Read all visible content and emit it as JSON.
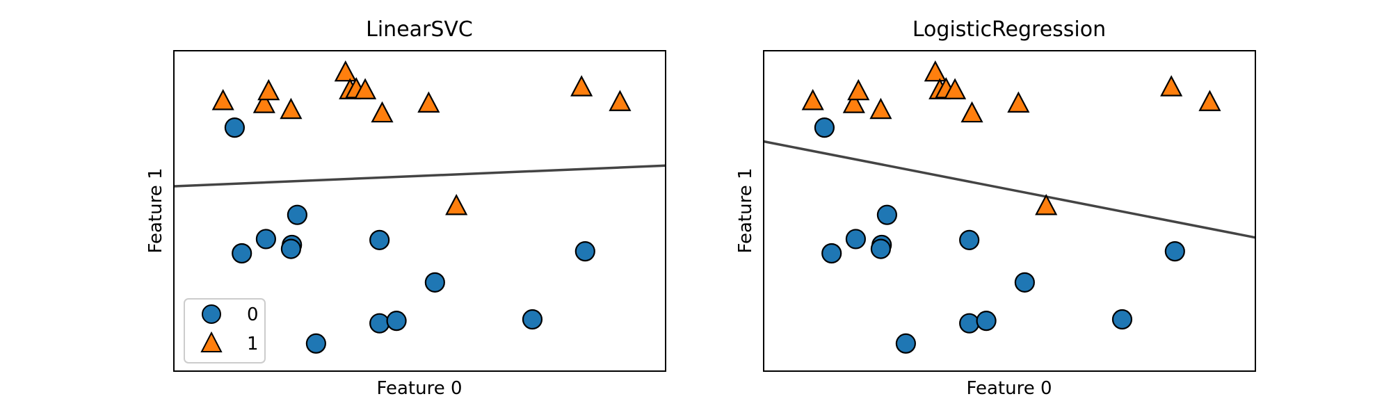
{
  "chart_data": [
    {
      "type": "scatter",
      "title": "LinearSVC",
      "xlabel": "Feature 0",
      "ylabel": "Feature 1",
      "xlim": [
        7.1,
        12.6
      ],
      "ylim": [
        -0.6,
        5.9
      ],
      "grid": false,
      "legend": {
        "placement": "lower-left",
        "entries": [
          "0",
          "1"
        ]
      },
      "series": [
        {
          "name": "0",
          "marker": "circle",
          "color": "#1f77b4",
          "points": [
            [
              7.78,
              4.34
            ],
            [
              8.48,
              2.57
            ],
            [
              7.86,
              1.79
            ],
            [
              8.13,
              2.08
            ],
            [
              8.42,
              1.96
            ],
            [
              8.41,
              1.88
            ],
            [
              9.4,
              2.06
            ],
            [
              10.02,
              1.2
            ],
            [
              8.69,
              -0.04
            ],
            [
              9.4,
              0.37
            ],
            [
              9.59,
              0.42
            ],
            [
              11.11,
              0.45
            ],
            [
              11.7,
              1.83
            ]
          ]
        },
        {
          "name": "1",
          "marker": "triangle",
          "color": "#ff7f0e",
          "points": [
            [
              7.65,
              4.88
            ],
            [
              8.11,
              4.82
            ],
            [
              8.16,
              5.08
            ],
            [
              8.41,
              4.7
            ],
            [
              9.02,
              5.46
            ],
            [
              9.07,
              5.1
            ],
            [
              9.14,
              5.12
            ],
            [
              9.24,
              5.1
            ],
            [
              9.43,
              4.63
            ],
            [
              9.95,
              4.83
            ],
            [
              10.26,
              2.75
            ],
            [
              11.66,
              5.16
            ],
            [
              12.09,
              4.86
            ]
          ]
        }
      ],
      "decision_line": [
        [
          7.1,
          3.15
        ],
        [
          12.6,
          3.57
        ]
      ]
    },
    {
      "type": "scatter",
      "title": "LogisticRegression",
      "xlabel": "Feature 0",
      "ylabel": "Feature 1",
      "xlim": [
        7.1,
        12.6
      ],
      "ylim": [
        -0.6,
        5.9
      ],
      "grid": false,
      "series": [
        {
          "name": "0",
          "marker": "circle",
          "color": "#1f77b4",
          "points": [
            [
              7.78,
              4.34
            ],
            [
              8.48,
              2.57
            ],
            [
              7.86,
              1.79
            ],
            [
              8.13,
              2.08
            ],
            [
              8.42,
              1.96
            ],
            [
              8.41,
              1.88
            ],
            [
              9.4,
              2.06
            ],
            [
              10.02,
              1.2
            ],
            [
              8.69,
              -0.04
            ],
            [
              9.4,
              0.37
            ],
            [
              9.59,
              0.42
            ],
            [
              11.11,
              0.45
            ],
            [
              11.7,
              1.83
            ]
          ]
        },
        {
          "name": "1",
          "marker": "triangle",
          "color": "#ff7f0e",
          "points": [
            [
              7.65,
              4.88
            ],
            [
              8.11,
              4.82
            ],
            [
              8.16,
              5.08
            ],
            [
              8.41,
              4.7
            ],
            [
              9.02,
              5.46
            ],
            [
              9.07,
              5.1
            ],
            [
              9.14,
              5.12
            ],
            [
              9.24,
              5.1
            ],
            [
              9.43,
              4.63
            ],
            [
              9.95,
              4.83
            ],
            [
              10.26,
              2.75
            ],
            [
              11.66,
              5.16
            ],
            [
              12.09,
              4.86
            ]
          ]
        }
      ],
      "decision_line": [
        [
          7.1,
          4.06
        ],
        [
          12.6,
          2.11
        ]
      ]
    }
  ]
}
